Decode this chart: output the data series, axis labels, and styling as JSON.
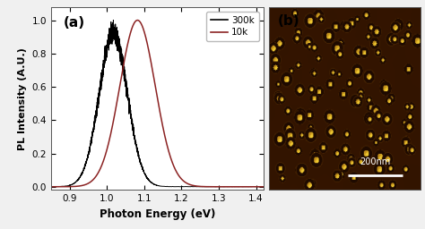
{
  "title_a": "(a)",
  "title_b": "(b)",
  "xlabel": "Photon Energy (eV)",
  "ylabel": "PL Intensity (A.U.)",
  "xlim": [
    0.85,
    1.42
  ],
  "ylim": [
    -0.02,
    1.08
  ],
  "xticks": [
    0.9,
    1.0,
    1.1,
    1.2,
    1.3,
    1.4
  ],
  "yticks": [
    0.0,
    0.2,
    0.4,
    0.6,
    0.8,
    1.0
  ],
  "black_peak": 1.017,
  "black_sigma": 0.038,
  "red_peak": 1.075,
  "red_sigma": 0.048,
  "legend_entries": [
    "300k",
    "10k"
  ],
  "line_color_black": "#000000",
  "line_color_red": "#8B2222",
  "background_color": "#f0f0f0",
  "scalebar_text": "200nm",
  "afm_bg_dark": [
    0.2,
    0.08,
    0.0
  ],
  "afm_bg_mid": [
    0.55,
    0.28,
    0.02
  ],
  "afm_ring_dark": [
    0.15,
    0.05,
    0.0
  ],
  "afm_dot_bright": [
    0.95,
    0.8,
    0.2
  ],
  "afm_dot_mid": [
    0.75,
    0.55,
    0.1
  ]
}
